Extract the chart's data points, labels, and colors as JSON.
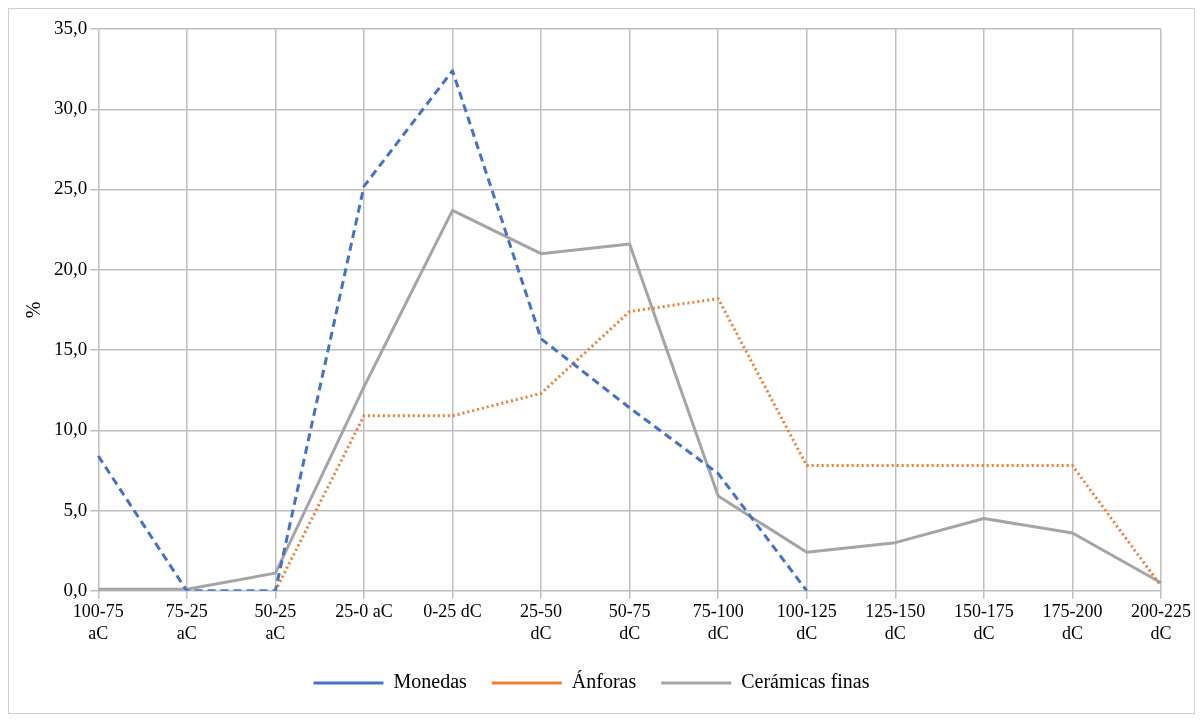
{
  "chart_data": {
    "type": "line",
    "ylabel": "%",
    "categories": [
      "100-75 aC",
      "75-25 aC",
      "50-25 aC",
      "25-0 aC",
      "0-25 dC",
      "25-50 dC",
      "50-75 dC",
      "75-100 dC",
      "100-125 dC",
      "125-150 dC",
      "150-175 dC",
      "175-200 dC",
      "200-225 dC"
    ],
    "series": [
      {
        "name": "Monedas",
        "color": "#4472c4",
        "line_style": "dashed",
        "values": [
          8.4,
          0,
          0,
          25.2,
          32.4,
          15.7,
          11.4,
          7.3,
          0,
          null,
          null,
          null,
          null
        ]
      },
      {
        "name": "Ánforas",
        "color": "#ed7d31",
        "line_style": "dotted",
        "values": [
          null,
          null,
          0,
          10.9,
          10.9,
          12.3,
          17.4,
          18.2,
          7.8,
          7.8,
          7.8,
          7.8,
          0.3
        ]
      },
      {
        "name": "Cerámicas finas",
        "color": "#a5a5a5",
        "line_style": "solid",
        "values": [
          0.1,
          0.1,
          1.1,
          12.7,
          23.7,
          21.0,
          21.6,
          5.9,
          2.4,
          3.0,
          4.5,
          3.6,
          0.5
        ]
      }
    ],
    "ylim": [
      0,
      35
    ],
    "yticks": [
      {
        "value": 0,
        "label": "0,0"
      },
      {
        "value": 5,
        "label": "5,0"
      },
      {
        "value": 10,
        "label": "10,0"
      },
      {
        "value": 15,
        "label": "15,0"
      },
      {
        "value": 20,
        "label": "20,0"
      },
      {
        "value": 25,
        "label": "25,0"
      },
      {
        "value": 30,
        "label": "30,0"
      },
      {
        "value": 35,
        "label": "35,0"
      }
    ],
    "grid": true,
    "legend": "bottom",
    "marker": "none"
  }
}
